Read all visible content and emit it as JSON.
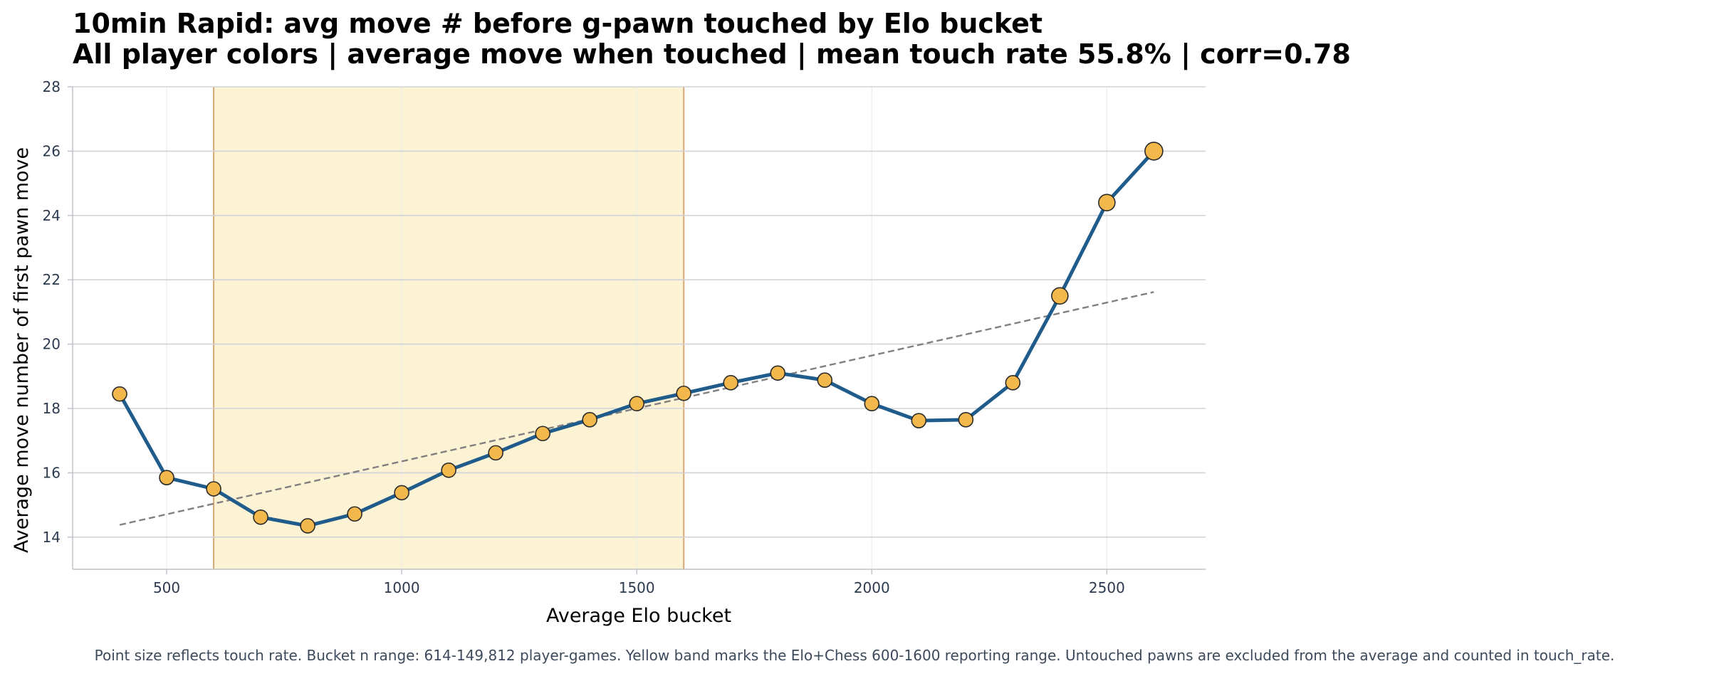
{
  "chart_data": {
    "type": "line",
    "title": "10min Rapid: avg move # before g-pawn touched by Elo bucket",
    "subtitle": "All player colors | average move when touched | mean touch rate 55.8% | corr=0.78",
    "xlabel": "Average Elo bucket",
    "ylabel": "Average move number of first pawn move",
    "xlim": [
      300,
      2710
    ],
    "ylim": [
      13,
      28
    ],
    "x_ticks": [
      500,
      1000,
      1500,
      2000,
      2500
    ],
    "y_ticks": [
      14,
      16,
      18,
      20,
      22,
      24,
      26,
      28
    ],
    "grid": true,
    "highlight_band": {
      "x_start": 600,
      "x_end": 1600
    },
    "series": [
      {
        "x": [
          400,
          500,
          600,
          700,
          800,
          900,
          1000,
          1100,
          1200,
          1300,
          1400,
          1500,
          1600,
          1700,
          1800,
          1900,
          2000,
          2100,
          2200,
          2300,
          2400,
          2500,
          2600
        ],
        "values": [
          18.45,
          15.85,
          15.5,
          14.62,
          14.35,
          14.72,
          15.38,
          16.08,
          16.62,
          17.22,
          17.65,
          18.15,
          18.47,
          18.8,
          19.1,
          18.88,
          18.15,
          17.62,
          17.65,
          18.8,
          21.5,
          24.4,
          26.0
        ]
      }
    ],
    "trend_line": {
      "x": [
        400,
        2600
      ],
      "values": [
        14.38,
        21.62
      ]
    },
    "colors": {
      "line": "#1f5c8b",
      "marker_fill": "#f2b84b",
      "marker_edge": "#2b2b2b",
      "band_fill": "#fcf2d4",
      "band_edge": "#d6a978",
      "trend": "#808080",
      "grid_h": "#d0d3d8",
      "grid_v": "#ececec",
      "axis": "#bfc3c9"
    }
  },
  "footnote": "Point size reflects touch rate. Bucket n range: 614-149,812 player-games. Yellow band marks the Elo+Chess 600-1600 reporting range. Untouched pawns are excluded from the average and counted in touch_rate."
}
